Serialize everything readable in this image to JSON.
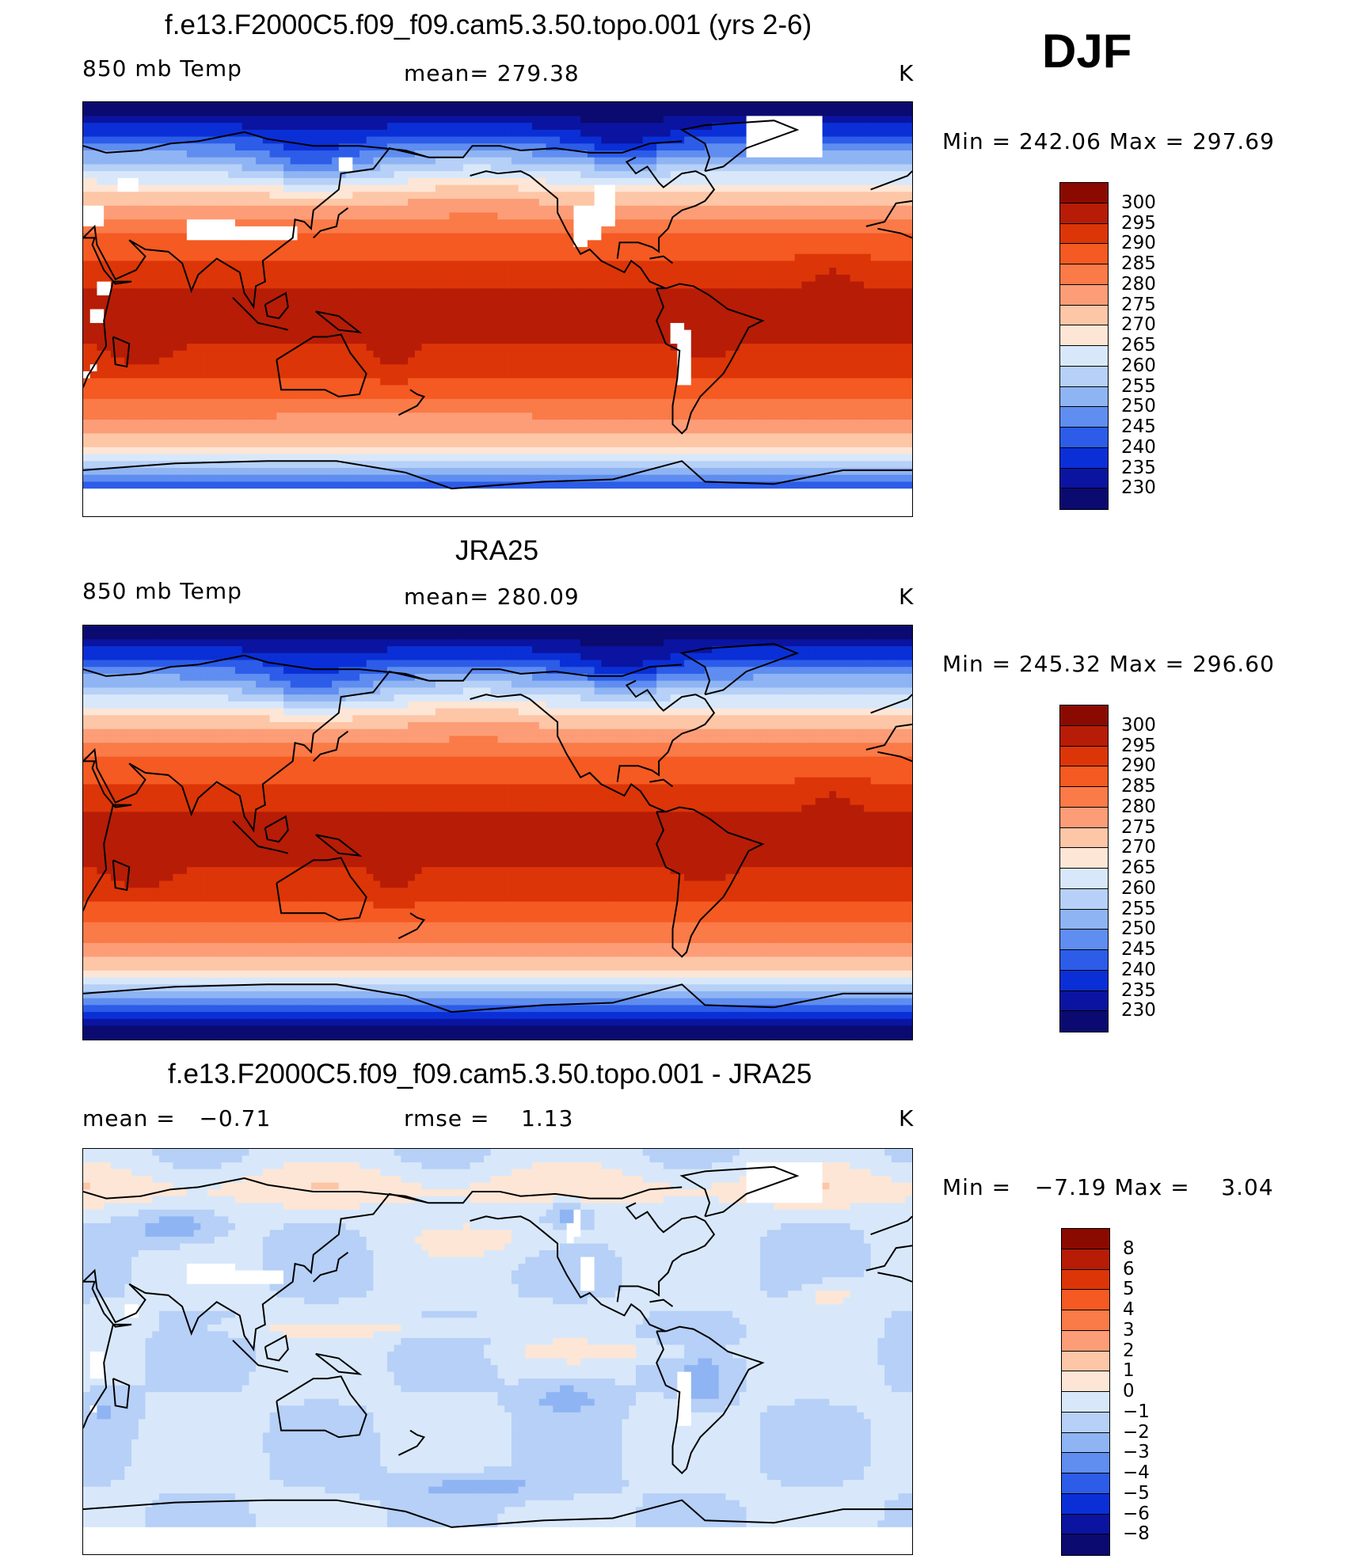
{
  "season_label": "DJF",
  "units": "K",
  "panels": [
    {
      "title": "f.e13.F2000C5.f09_f09.cam5.3.50.topo.001 (yrs 2-6)",
      "left_label": "850 mb Temp",
      "center_label": "mean= 279.38",
      "right_label": "K",
      "minmax": "Min = 242.06 Max = 297.69",
      "colorbar": {
        "labels": [
          "300",
          "295",
          "290",
          "285",
          "280",
          "275",
          "270",
          "265",
          "260",
          "255",
          "250",
          "245",
          "240",
          "235",
          "230"
        ],
        "colors": [
          "#8b0a00",
          "#b71c06",
          "#dc3508",
          "#f45a22",
          "#fa7a48",
          "#fc9d77",
          "#fdc6a7",
          "#fde6d6",
          "#d8e8fa",
          "#b6d0f7",
          "#8fb4f3",
          "#5f8df0",
          "#2c5ce8",
          "#0b2fd6",
          "#0a14a0",
          "#0a0a70"
        ]
      },
      "map_type": "temp_model"
    },
    {
      "title": "JRA25",
      "left_label": "850 mb Temp",
      "center_label": "mean= 280.09",
      "right_label": "K",
      "minmax": "Min = 245.32 Max = 296.60",
      "colorbar": {
        "labels": [
          "300",
          "295",
          "290",
          "285",
          "280",
          "275",
          "270",
          "265",
          "260",
          "255",
          "250",
          "245",
          "240",
          "235",
          "230"
        ],
        "colors": [
          "#8b0a00",
          "#b71c06",
          "#dc3508",
          "#f45a22",
          "#fa7a48",
          "#fc9d77",
          "#fdc6a7",
          "#fde6d6",
          "#d8e8fa",
          "#b6d0f7",
          "#8fb4f3",
          "#5f8df0",
          "#2c5ce8",
          "#0b2fd6",
          "#0a14a0",
          "#0a0a70"
        ]
      },
      "map_type": "temp_obs"
    },
    {
      "title": "f.e13.F2000C5.f09_f09.cam5.3.50.topo.001 - JRA25",
      "left_label": "mean =   −0.71",
      "center_label": "rmse =    1.13",
      "right_label": "K",
      "minmax": "Min =   −7.19 Max =    3.04",
      "colorbar": {
        "labels": [
          "8",
          "6",
          "5",
          "4",
          "3",
          "2",
          "1",
          "0",
          "−1",
          "−2",
          "−3",
          "−4",
          "−5",
          "−6",
          "−8"
        ],
        "colors": [
          "#8b0a00",
          "#b71c06",
          "#dc3508",
          "#f45a22",
          "#fa7a48",
          "#fc9d77",
          "#fdc6a7",
          "#fde6d6",
          "#d8e8fa",
          "#b6d0f7",
          "#8fb4f3",
          "#5f8df0",
          "#2c5ce8",
          "#0b2fd6",
          "#0a14a0",
          "#0a0a70"
        ]
      },
      "map_type": "diff"
    }
  ]
}
